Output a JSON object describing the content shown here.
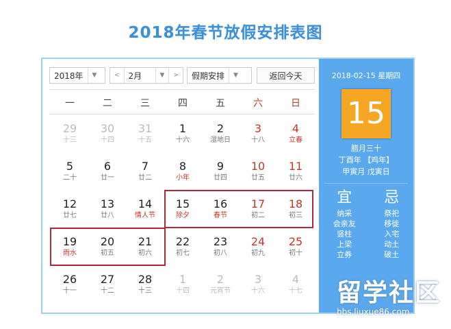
{
  "title": "2018年春节放假安排表图",
  "controls": {
    "year": "2018年",
    "prev": "<",
    "month": "2月",
    "next": ">",
    "mode": "假期安排",
    "today_button": "返回今天"
  },
  "weekdays": [
    "一",
    "二",
    "三",
    "四",
    "五",
    "六",
    "日"
  ],
  "days": [
    {
      "n": "29",
      "s": "十三",
      "other": true
    },
    {
      "n": "30",
      "s": "十四",
      "other": true
    },
    {
      "n": "31",
      "s": "十五",
      "other": true
    },
    {
      "n": "1",
      "s": "十六"
    },
    {
      "n": "2",
      "s": "湿地日"
    },
    {
      "n": "3",
      "s": "十八",
      "we": true
    },
    {
      "n": "4",
      "s": "立春",
      "we": true,
      "sr": true
    },
    {
      "n": "5",
      "s": "二十"
    },
    {
      "n": "6",
      "s": "廿一"
    },
    {
      "n": "7",
      "s": "廿二"
    },
    {
      "n": "8",
      "s": "小年",
      "sr": true
    },
    {
      "n": "9",
      "s": "廿四"
    },
    {
      "n": "10",
      "s": "廿五",
      "we": true
    },
    {
      "n": "11",
      "s": "廿六",
      "we": true
    },
    {
      "n": "12",
      "s": "廿七"
    },
    {
      "n": "13",
      "s": "廿八"
    },
    {
      "n": "14",
      "s": "情人节",
      "sr": true
    },
    {
      "n": "15",
      "s": "除夕",
      "sr": true
    },
    {
      "n": "16",
      "s": "春节",
      "sr": true
    },
    {
      "n": "17",
      "s": "初二",
      "we": true
    },
    {
      "n": "18",
      "s": "初三",
      "we": true
    },
    {
      "n": "19",
      "s": "雨水",
      "sr": true
    },
    {
      "n": "20",
      "s": "初五"
    },
    {
      "n": "21",
      "s": "初六"
    },
    {
      "n": "22",
      "s": "初七"
    },
    {
      "n": "23",
      "s": "初八"
    },
    {
      "n": "24",
      "s": "初九",
      "we": true
    },
    {
      "n": "25",
      "s": "初十",
      "we": true
    },
    {
      "n": "26",
      "s": "十一"
    },
    {
      "n": "27",
      "s": "十二"
    },
    {
      "n": "28",
      "s": "十三"
    },
    {
      "n": "1",
      "s": "十四",
      "other": true
    },
    {
      "n": "2",
      "s": "元宵节",
      "other": true
    },
    {
      "n": "3",
      "s": "十六",
      "other": true
    },
    {
      "n": "4",
      "s": "十七",
      "other": true
    }
  ],
  "side": {
    "date": "2018-02-15 星期四",
    "day": "15",
    "lunar": "腊月三十",
    "year": "丁酉年 【鸡年】",
    "ganzhi": "甲寅月 戊寅日",
    "yi_label": "宜",
    "ji_label": "忌",
    "yi": [
      "纳采",
      "会亲友",
      "竖柱",
      "上梁",
      "立券"
    ],
    "ji": [
      "祭祀",
      "移徙",
      "入宅",
      "动土",
      "破土"
    ]
  },
  "colors": {
    "accent": "#5aa9ee",
    "today": "#f5a623",
    "holiday_box": "#b0273a",
    "weekend": "#c0392b"
  },
  "watermark": {
    "logo": "留学社区",
    "url": "bbs.liuxue86.com"
  }
}
